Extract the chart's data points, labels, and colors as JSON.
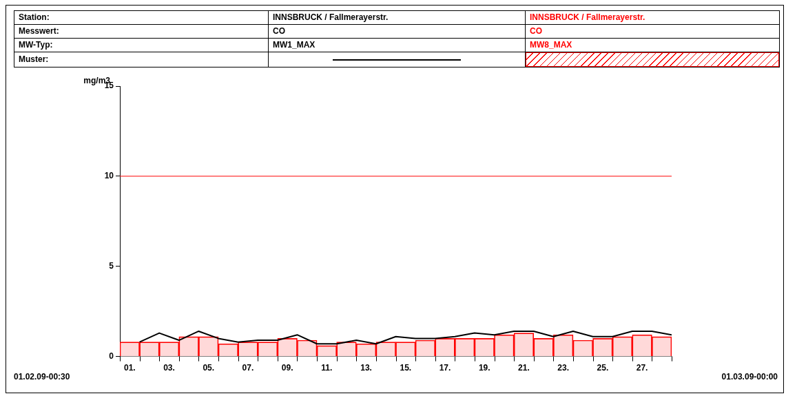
{
  "chart_data": {
    "type": "bar",
    "ylabel": "mg/m3",
    "annotations": [
      "Station:",
      "INNSBRUCK / Fallmerayerstr.",
      "INNSBRUCK / Fallmerayerstr.",
      "Messwert:",
      "CO",
      "CO",
      "MW-Typ:",
      "Muster:",
      "01.02.09-00:30",
      "01.03.09-00:00"
    ],
    "xlim": [
      0,
      28
    ],
    "xticks": [
      {
        "value": 0,
        "label": null
      },
      {
        "value": 0.5,
        "label": "01."
      },
      {
        "value": 1,
        "label": null
      },
      {
        "value": 2,
        "label": null
      },
      {
        "value": 2.5,
        "label": "03."
      },
      {
        "value": 3,
        "label": null
      },
      {
        "value": 4,
        "label": null
      },
      {
        "value": 4.5,
        "label": "05."
      },
      {
        "value": 5,
        "label": null
      },
      {
        "value": 6,
        "label": null
      },
      {
        "value": 6.5,
        "label": "07."
      },
      {
        "value": 7,
        "label": null
      },
      {
        "value": 8,
        "label": null
      },
      {
        "value": 8.5,
        "label": "09."
      },
      {
        "value": 9,
        "label": null
      },
      {
        "value": 10,
        "label": null
      },
      {
        "value": 10.5,
        "label": "11."
      },
      {
        "value": 11,
        "label": null
      },
      {
        "value": 12,
        "label": null
      },
      {
        "value": 12.5,
        "label": "13."
      },
      {
        "value": 13,
        "label": null
      },
      {
        "value": 14,
        "label": null
      },
      {
        "value": 14.5,
        "label": "15."
      },
      {
        "value": 15,
        "label": null
      },
      {
        "value": 16,
        "label": null
      },
      {
        "value": 16.5,
        "label": "17."
      },
      {
        "value": 17,
        "label": null
      },
      {
        "value": 18,
        "label": null
      },
      {
        "value": 18.5,
        "label": "19."
      },
      {
        "value": 19,
        "label": null
      },
      {
        "value": 20,
        "label": null
      },
      {
        "value": 20.5,
        "label": "21."
      },
      {
        "value": 21,
        "label": null
      },
      {
        "value": 22,
        "label": null
      },
      {
        "value": 22.5,
        "label": "23."
      },
      {
        "value": 23,
        "label": null
      },
      {
        "value": 24,
        "label": null
      },
      {
        "value": 24.5,
        "label": "25."
      },
      {
        "value": 25,
        "label": null
      },
      {
        "value": 26,
        "label": null
      },
      {
        "value": 26.5,
        "label": "27."
      },
      {
        "value": 27,
        "label": null
      },
      {
        "value": 28,
        "label": null
      }
    ],
    "ylim": [
      0,
      15
    ],
    "yticks": [
      0,
      5,
      10,
      15
    ],
    "grid": false,
    "legend": false,
    "ref_lines": [
      {
        "axis": "y",
        "value": 10,
        "color": "#ff0000"
      }
    ],
    "series": [
      {
        "name": "MW8_MAX",
        "color": "#ff0000",
        "x": [
          0.5,
          1.5,
          2.5,
          3.5,
          4.5,
          5.5,
          6.5,
          7.5,
          8.5,
          9.5,
          10.5,
          11.5,
          12.5,
          13.5,
          14.5,
          15.5,
          16.5,
          17.5,
          18.5,
          19.5,
          20.5,
          21.5,
          22.5,
          23.5,
          24.5,
          25.5,
          26.5,
          27.5
        ],
        "values": [
          0.8,
          0.8,
          0.8,
          1.1,
          1.1,
          0.7,
          0.8,
          0.8,
          1.0,
          0.9,
          0.6,
          0.8,
          0.7,
          0.8,
          0.8,
          0.9,
          1.0,
          1.0,
          1.0,
          1.2,
          1.3,
          1.0,
          1.2,
          0.9,
          1.0,
          1.1,
          1.2,
          1.1
        ]
      },
      {
        "name": "MW1_MAX",
        "type": "line",
        "color": "#000000",
        "x": [
          1,
          2,
          3,
          4,
          5,
          6,
          7,
          8,
          9,
          10,
          11,
          12,
          13,
          14,
          15,
          16,
          17,
          18,
          19,
          20,
          21,
          22,
          23,
          24,
          25,
          26,
          27,
          28
        ],
        "values": [
          0.8,
          1.3,
          0.9,
          1.4,
          1.0,
          0.8,
          0.9,
          0.9,
          1.2,
          0.7,
          0.7,
          0.9,
          0.7,
          1.1,
          1.0,
          1.0,
          1.1,
          1.3,
          1.2,
          1.4,
          1.4,
          1.1,
          1.4,
          1.1,
          1.1,
          1.4,
          1.4,
          1.2
        ]
      }
    ]
  }
}
